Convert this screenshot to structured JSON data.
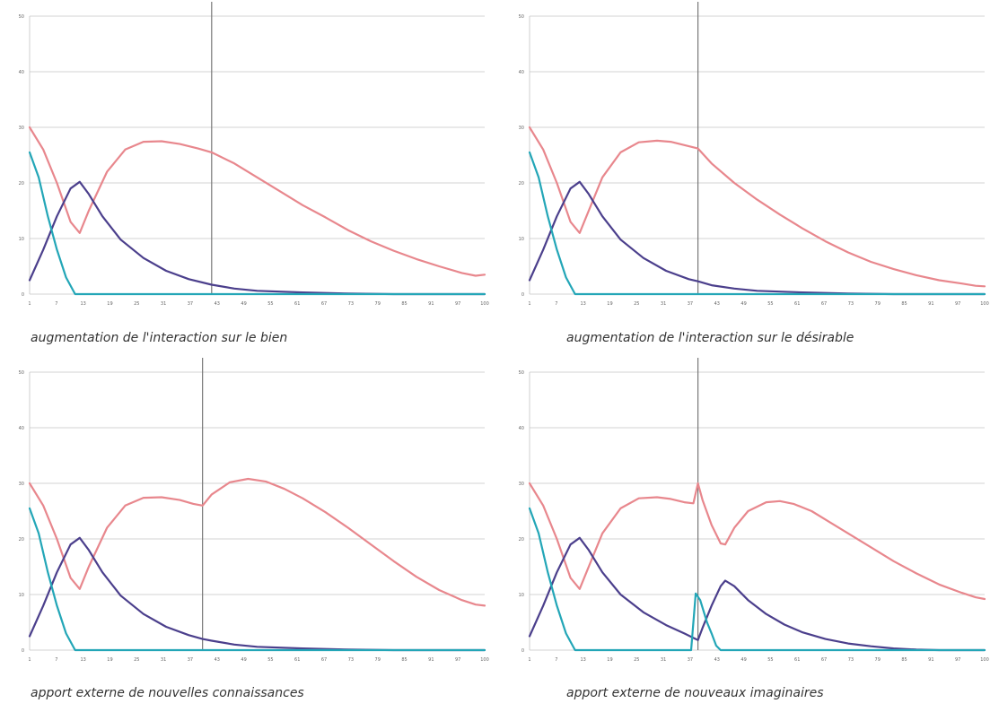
{
  "colors": {
    "pink": "#e8878d",
    "purple": "#4b3f8c",
    "teal": "#23a6b7",
    "grid": "#c4c4c4",
    "marker": "#777777"
  },
  "chart_data": [
    {
      "type": "line",
      "caption": "augmentation de l'interaction sur le bien",
      "xlim": [
        0,
        100
      ],
      "ylim": [
        0,
        50
      ],
      "yticks": [
        "50",
        "40",
        "30",
        "20",
        "10",
        "0"
      ],
      "xticks": [
        "1",
        "7",
        "13",
        "19",
        "25",
        "31",
        "37",
        "43",
        "49",
        "55",
        "61",
        "67",
        "73",
        "79",
        "85",
        "91",
        "97",
        "100"
      ],
      "marker_x": 40,
      "grid": true,
      "series": [
        {
          "color": "pink",
          "points": [
            [
              0,
              30
            ],
            [
              3,
              26
            ],
            [
              6,
              20
            ],
            [
              9,
              13
            ],
            [
              11,
              11
            ],
            [
              13,
              15
            ],
            [
              17,
              22
            ],
            [
              21,
              26
            ],
            [
              25,
              27.4
            ],
            [
              29,
              27.5
            ],
            [
              33,
              27
            ],
            [
              37,
              26.2
            ],
            [
              40,
              25.5
            ],
            [
              45,
              23.5
            ],
            [
              50,
              21
            ],
            [
              55,
              18.5
            ],
            [
              60,
              16
            ],
            [
              65,
              13.8
            ],
            [
              70,
              11.5
            ],
            [
              75,
              9.5
            ],
            [
              80,
              7.8
            ],
            [
              85,
              6.3
            ],
            [
              90,
              5
            ],
            [
              95,
              3.8
            ],
            [
              98,
              3.3
            ],
            [
              100,
              3.5
            ]
          ]
        },
        {
          "color": "purple",
          "points": [
            [
              0,
              2.5
            ],
            [
              3,
              8
            ],
            [
              6,
              14
            ],
            [
              9,
              19
            ],
            [
              11,
              20.2
            ],
            [
              13,
              18
            ],
            [
              16,
              14
            ],
            [
              20,
              9.8
            ],
            [
              25,
              6.5
            ],
            [
              30,
              4.2
            ],
            [
              35,
              2.7
            ],
            [
              40,
              1.7
            ],
            [
              45,
              1
            ],
            [
              50,
              0.6
            ],
            [
              60,
              0.3
            ],
            [
              70,
              0.1
            ],
            [
              80,
              0
            ],
            [
              100,
              0
            ]
          ]
        },
        {
          "color": "teal",
          "points": [
            [
              0,
              25.5
            ],
            [
              2,
              21
            ],
            [
              4,
              14
            ],
            [
              6,
              8
            ],
            [
              8,
              3
            ],
            [
              10,
              0
            ],
            [
              100,
              0
            ]
          ]
        }
      ]
    },
    {
      "type": "line",
      "caption": "augmentation de l'interaction sur le désirable",
      "xlim": [
        0,
        100
      ],
      "ylim": [
        0,
        50
      ],
      "yticks": [
        "50",
        "40",
        "30",
        "20",
        "10",
        "0"
      ],
      "xticks": [
        "1",
        "7",
        "13",
        "19",
        "25",
        "31",
        "37",
        "43",
        "49",
        "55",
        "61",
        "67",
        "73",
        "79",
        "85",
        "91",
        "97",
        "100"
      ],
      "marker_x": 37,
      "grid": true,
      "series": [
        {
          "color": "pink",
          "points": [
            [
              0,
              30
            ],
            [
              3,
              26
            ],
            [
              6,
              20
            ],
            [
              9,
              13
            ],
            [
              11,
              11
            ],
            [
              13,
              15
            ],
            [
              16,
              21
            ],
            [
              20,
              25.5
            ],
            [
              24,
              27.3
            ],
            [
              28,
              27.6
            ],
            [
              31,
              27.4
            ],
            [
              34,
              26.8
            ],
            [
              37,
              26.2
            ],
            [
              40,
              23.5
            ],
            [
              45,
              20
            ],
            [
              50,
              17
            ],
            [
              55,
              14.3
            ],
            [
              60,
              11.8
            ],
            [
              65,
              9.5
            ],
            [
              70,
              7.5
            ],
            [
              75,
              5.8
            ],
            [
              80,
              4.5
            ],
            [
              85,
              3.4
            ],
            [
              90,
              2.5
            ],
            [
              95,
              1.9
            ],
            [
              98,
              1.5
            ],
            [
              100,
              1.4
            ]
          ]
        },
        {
          "color": "purple",
          "points": [
            [
              0,
              2.5
            ],
            [
              3,
              8
            ],
            [
              6,
              14
            ],
            [
              9,
              19
            ],
            [
              11,
              20.2
            ],
            [
              13,
              18
            ],
            [
              16,
              14
            ],
            [
              20,
              9.8
            ],
            [
              25,
              6.5
            ],
            [
              30,
              4.2
            ],
            [
              35,
              2.7
            ],
            [
              37,
              2.3
            ],
            [
              40,
              1.6
            ],
            [
              45,
              1
            ],
            [
              50,
              0.6
            ],
            [
              60,
              0.3
            ],
            [
              70,
              0.1
            ],
            [
              80,
              0
            ],
            [
              100,
              0
            ]
          ]
        },
        {
          "color": "teal",
          "points": [
            [
              0,
              25.5
            ],
            [
              2,
              21
            ],
            [
              4,
              14
            ],
            [
              6,
              8
            ],
            [
              8,
              3
            ],
            [
              10,
              0
            ],
            [
              100,
              0
            ]
          ]
        }
      ]
    },
    {
      "type": "line",
      "caption": "apport externe de nouvelles connaissances",
      "xlim": [
        0,
        100
      ],
      "ylim": [
        0,
        50
      ],
      "yticks": [
        "50",
        "40",
        "30",
        "20",
        "10",
        "0"
      ],
      "xticks": [
        "1",
        "7",
        "13",
        "19",
        "25",
        "31",
        "37",
        "43",
        "49",
        "55",
        "61",
        "67",
        "73",
        "79",
        "85",
        "91",
        "97",
        "100"
      ],
      "marker_x": 38,
      "grid": true,
      "series": [
        {
          "color": "pink",
          "points": [
            [
              0,
              30
            ],
            [
              3,
              26
            ],
            [
              6,
              20
            ],
            [
              9,
              13
            ],
            [
              11,
              11
            ],
            [
              13,
              15
            ],
            [
              17,
              22
            ],
            [
              21,
              26
            ],
            [
              25,
              27.4
            ],
            [
              29,
              27.5
            ],
            [
              33,
              27
            ],
            [
              36,
              26.3
            ],
            [
              38,
              26
            ],
            [
              40,
              28
            ],
            [
              44,
              30.2
            ],
            [
              48,
              30.8
            ],
            [
              52,
              30.3
            ],
            [
              56,
              29
            ],
            [
              60,
              27.3
            ],
            [
              65,
              24.8
            ],
            [
              70,
              22
            ],
            [
              75,
              19
            ],
            [
              80,
              16
            ],
            [
              85,
              13.2
            ],
            [
              90,
              10.8
            ],
            [
              95,
              9
            ],
            [
              98,
              8.2
            ],
            [
              100,
              8
            ]
          ]
        },
        {
          "color": "purple",
          "points": [
            [
              0,
              2.5
            ],
            [
              3,
              8
            ],
            [
              6,
              14
            ],
            [
              9,
              19
            ],
            [
              11,
              20.2
            ],
            [
              13,
              18
            ],
            [
              16,
              14
            ],
            [
              20,
              9.8
            ],
            [
              25,
              6.5
            ],
            [
              30,
              4.2
            ],
            [
              35,
              2.7
            ],
            [
              38,
              2
            ],
            [
              40,
              1.7
            ],
            [
              45,
              1
            ],
            [
              50,
              0.6
            ],
            [
              60,
              0.3
            ],
            [
              70,
              0.1
            ],
            [
              80,
              0
            ],
            [
              100,
              0
            ]
          ]
        },
        {
          "color": "teal",
          "points": [
            [
              0,
              25.5
            ],
            [
              2,
              21
            ],
            [
              4,
              14
            ],
            [
              6,
              8
            ],
            [
              8,
              3
            ],
            [
              10,
              0
            ],
            [
              100,
              0
            ]
          ]
        }
      ]
    },
    {
      "type": "line",
      "caption": "apport externe de nouveaux imaginaires",
      "xlim": [
        0,
        100
      ],
      "ylim": [
        0,
        50
      ],
      "yticks": [
        "50",
        "40",
        "30",
        "20",
        "10",
        "0"
      ],
      "xticks": [
        "1",
        "7",
        "13",
        "19",
        "25",
        "31",
        "37",
        "43",
        "49",
        "55",
        "61",
        "67",
        "73",
        "79",
        "85",
        "91",
        "97",
        "100"
      ],
      "marker_x": 37,
      "grid": true,
      "series": [
        {
          "color": "pink",
          "points": [
            [
              0,
              30
            ],
            [
              3,
              26
            ],
            [
              6,
              20
            ],
            [
              9,
              13
            ],
            [
              11,
              11
            ],
            [
              13,
              15
            ],
            [
              16,
              21
            ],
            [
              20,
              25.5
            ],
            [
              24,
              27.3
            ],
            [
              28,
              27.5
            ],
            [
              31,
              27.2
            ],
            [
              34,
              26.6
            ],
            [
              36,
              26.4
            ],
            [
              37,
              30
            ],
            [
              38,
              27
            ],
            [
              40,
              22.5
            ],
            [
              42,
              19.2
            ],
            [
              43,
              19
            ],
            [
              45,
              22
            ],
            [
              48,
              25
            ],
            [
              52,
              26.6
            ],
            [
              55,
              26.8
            ],
            [
              58,
              26.3
            ],
            [
              62,
              25
            ],
            [
              66,
              23
            ],
            [
              70,
              21
            ],
            [
              75,
              18.5
            ],
            [
              80,
              16
            ],
            [
              85,
              13.8
            ],
            [
              90,
              11.8
            ],
            [
              95,
              10.3
            ],
            [
              98,
              9.5
            ],
            [
              100,
              9.2
            ]
          ]
        },
        {
          "color": "purple",
          "points": [
            [
              0,
              2.5
            ],
            [
              3,
              8
            ],
            [
              6,
              14
            ],
            [
              9,
              19
            ],
            [
              11,
              20.2
            ],
            [
              13,
              18
            ],
            [
              16,
              14
            ],
            [
              20,
              10
            ],
            [
              25,
              6.8
            ],
            [
              30,
              4.5
            ],
            [
              34,
              3
            ],
            [
              36,
              2.2
            ],
            [
              37,
              1.8
            ],
            [
              38,
              4
            ],
            [
              40,
              8
            ],
            [
              42,
              11.5
            ],
            [
              43,
              12.5
            ],
            [
              45,
              11.5
            ],
            [
              48,
              9
            ],
            [
              52,
              6.5
            ],
            [
              56,
              4.6
            ],
            [
              60,
              3.2
            ],
            [
              65,
              2
            ],
            [
              70,
              1.2
            ],
            [
              75,
              0.7
            ],
            [
              80,
              0.3
            ],
            [
              85,
              0.1
            ],
            [
              90,
              0
            ],
            [
              100,
              0
            ]
          ]
        },
        {
          "color": "teal",
          "points": [
            [
              0,
              25.5
            ],
            [
              2,
              21
            ],
            [
              4,
              14
            ],
            [
              6,
              8
            ],
            [
              8,
              3
            ],
            [
              10,
              0
            ],
            [
              35.5,
              0
            ],
            [
              36.5,
              10.2
            ],
            [
              37.5,
              9
            ],
            [
              39,
              5
            ],
            [
              40,
              3
            ],
            [
              41,
              0.8
            ],
            [
              42,
              0
            ],
            [
              100,
              0
            ]
          ]
        }
      ]
    }
  ]
}
